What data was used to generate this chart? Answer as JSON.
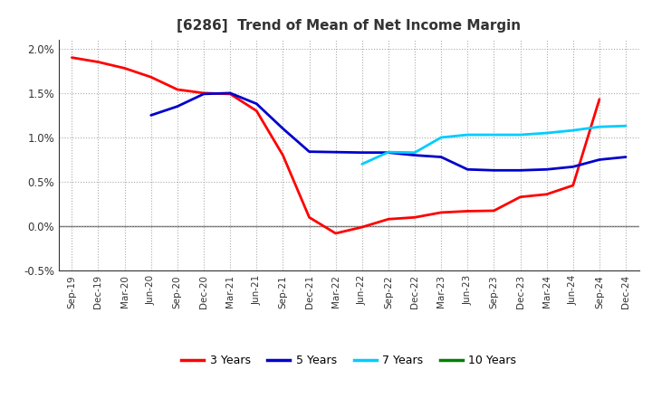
{
  "title": "[6286]  Trend of Mean of Net Income Margin",
  "x_labels": [
    "Sep-19",
    "Dec-19",
    "Mar-20",
    "Jun-20",
    "Sep-20",
    "Dec-20",
    "Mar-21",
    "Jun-21",
    "Sep-21",
    "Dec-21",
    "Mar-22",
    "Jun-22",
    "Sep-22",
    "Dec-22",
    "Mar-23",
    "Jun-23",
    "Sep-23",
    "Dec-23",
    "Mar-24",
    "Jun-24",
    "Sep-24",
    "Dec-24"
  ],
  "ylim": [
    -0.005,
    0.021
  ],
  "yticks": [
    -0.005,
    0.0,
    0.005,
    0.01,
    0.015,
    0.02
  ],
  "series": {
    "3 Years": {
      "color": "#FF0000",
      "data": [
        0.019,
        0.0185,
        0.0178,
        0.0168,
        0.0154,
        0.015,
        0.0149,
        0.013,
        0.008,
        0.001,
        -0.0008,
        -0.0001,
        0.0008,
        0.001,
        0.00155,
        0.0017,
        0.00175,
        0.0033,
        0.0036,
        0.0046,
        0.0143,
        null
      ]
    },
    "5 Years": {
      "color": "#0000CC",
      "data": [
        null,
        null,
        null,
        0.0125,
        0.0135,
        0.0149,
        0.015,
        0.0138,
        0.011,
        0.0084,
        0.00835,
        0.0083,
        0.0083,
        0.008,
        0.0078,
        0.0064,
        0.0063,
        0.0063,
        0.0064,
        0.0067,
        0.0075,
        0.0078
      ]
    },
    "7 Years": {
      "color": "#00CCFF",
      "data": [
        null,
        null,
        null,
        null,
        null,
        null,
        null,
        null,
        null,
        null,
        null,
        0.007,
        0.00835,
        0.0083,
        0.01,
        0.0103,
        0.0103,
        0.0103,
        0.0105,
        0.0108,
        0.0112,
        0.0113
      ]
    },
    "10 Years": {
      "color": "#008000",
      "data": [
        null,
        null,
        null,
        null,
        null,
        null,
        null,
        null,
        null,
        null,
        null,
        null,
        null,
        null,
        null,
        null,
        null,
        null,
        null,
        null,
        null,
        null
      ]
    }
  },
  "legend_labels": [
    "3 Years",
    "5 Years",
    "7 Years",
    "10 Years"
  ],
  "legend_colors": [
    "#FF0000",
    "#0000CC",
    "#00CCFF",
    "#008000"
  ]
}
